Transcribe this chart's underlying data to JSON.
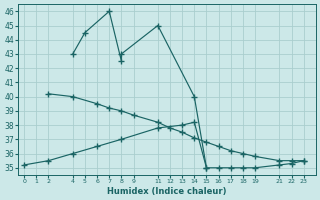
{
  "xlabel": "Humidex (Indice chaleur)",
  "bg_color": "#cce8e8",
  "grid_color": "#aacece",
  "line_color": "#1a6464",
  "xlim": [
    -0.5,
    24.0
  ],
  "ylim": [
    34.5,
    46.5
  ],
  "yticks": [
    35,
    36,
    37,
    38,
    39,
    40,
    41,
    42,
    43,
    44,
    45,
    46
  ],
  "xticks": [
    0,
    1,
    2,
    4,
    5,
    6,
    7,
    8,
    9,
    11,
    12,
    13,
    14,
    15,
    16,
    17,
    18,
    19,
    21,
    22,
    23
  ],
  "series": [
    {
      "x": [
        4,
        5,
        7,
        8,
        8,
        11,
        14,
        15
      ],
      "y": [
        43.0,
        44.5,
        46.0,
        42.5,
        43.0,
        45.0,
        40.0,
        35.0
      ]
    },
    {
      "x": [
        2,
        4,
        6,
        7,
        8,
        9,
        11,
        12,
        13,
        14,
        15,
        16,
        17,
        18,
        19,
        21,
        22,
        23
      ],
      "y": [
        40.2,
        40.0,
        39.5,
        39.2,
        39.0,
        38.7,
        38.2,
        37.8,
        37.5,
        37.1,
        36.8,
        36.5,
        36.2,
        36.0,
        35.8,
        35.5,
        35.5,
        35.5
      ]
    },
    {
      "x": [
        0,
        2,
        4,
        6,
        8,
        11,
        13,
        14,
        15,
        16,
        17,
        18,
        19,
        21,
        22,
        23
      ],
      "y": [
        35.2,
        35.5,
        36.0,
        36.5,
        37.0,
        37.8,
        38.0,
        38.2,
        35.0,
        35.0,
        35.0,
        35.0,
        35.0,
        35.2,
        35.3,
        35.5
      ]
    }
  ]
}
